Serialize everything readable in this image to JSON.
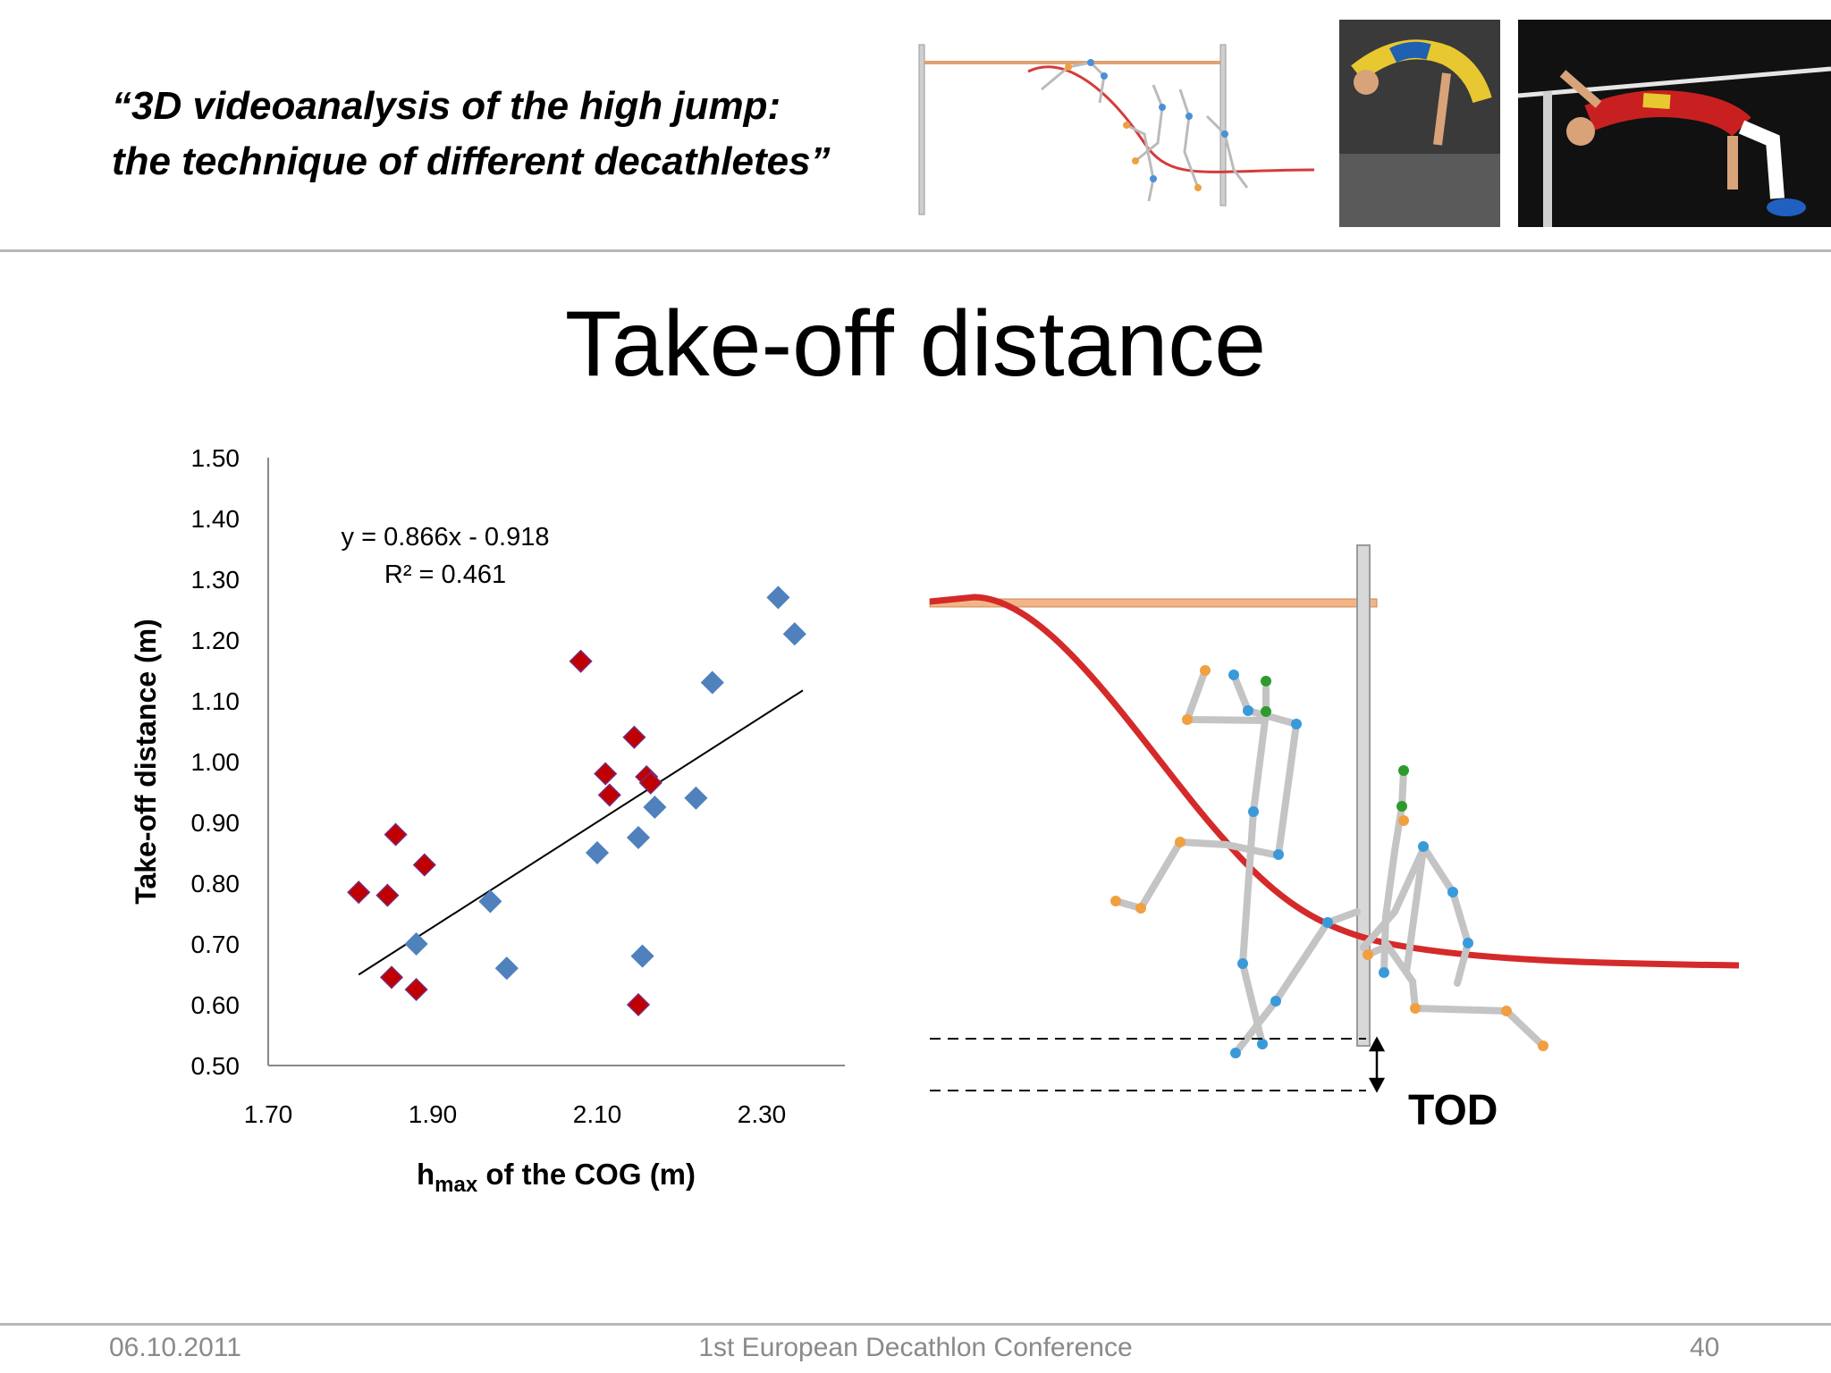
{
  "header": {
    "title_line1": "“3D videoanalysis of the high jump:",
    "title_line2": "the technique of different decathletes”"
  },
  "slide": {
    "title": "Take-off distance"
  },
  "chart_data": {
    "type": "scatter",
    "xlim": [
      1.7,
      2.4
    ],
    "ylim": [
      0.5,
      1.5
    ],
    "x_ticks": [
      "1.70",
      "1.90",
      "2.10",
      "2.30"
    ],
    "y_ticks": [
      "1.50",
      "1.40",
      "1.30",
      "1.20",
      "1.10",
      "1.00",
      "0.90",
      "0.80",
      "0.70",
      "0.60",
      "0.50"
    ],
    "xlabel_main": "h",
    "xlabel_sub": "max",
    "xlabel_rest": " of the COG (m)",
    "ylabel": "Take-off distance (m)",
    "equation": "y = 0.866x - 0.918",
    "r_squared": "R² = 0.461",
    "trendline": {
      "slope": 0.866,
      "intercept": -0.918,
      "x_from": 1.81,
      "x_to": 2.35
    },
    "series": [
      {
        "name": "blue",
        "color": "#4f81bd",
        "points": [
          [
            1.88,
            0.7
          ],
          [
            1.97,
            0.77
          ],
          [
            1.99,
            0.66
          ],
          [
            2.1,
            0.85
          ],
          [
            2.15,
            0.875
          ],
          [
            2.155,
            0.68
          ],
          [
            2.17,
            0.925
          ],
          [
            2.22,
            0.94
          ],
          [
            2.24,
            1.13
          ],
          [
            2.32,
            1.27
          ],
          [
            2.34,
            1.21
          ]
        ]
      },
      {
        "name": "red",
        "color": "#c00000",
        "points": [
          [
            1.81,
            0.785
          ],
          [
            1.845,
            0.78
          ],
          [
            1.85,
            0.645
          ],
          [
            1.855,
            0.88
          ],
          [
            1.88,
            0.625
          ],
          [
            1.89,
            0.83
          ],
          [
            2.08,
            1.165
          ],
          [
            2.11,
            0.98
          ],
          [
            2.115,
            0.945
          ],
          [
            2.145,
            1.04
          ],
          [
            2.16,
            0.975
          ],
          [
            2.165,
            0.965
          ],
          [
            2.15,
            0.6
          ]
        ]
      }
    ]
  },
  "diagram": {
    "label": "TOD"
  },
  "footer": {
    "date": "06.10.2011",
    "conference": "1st European Decathlon Conference",
    "page": "40"
  }
}
